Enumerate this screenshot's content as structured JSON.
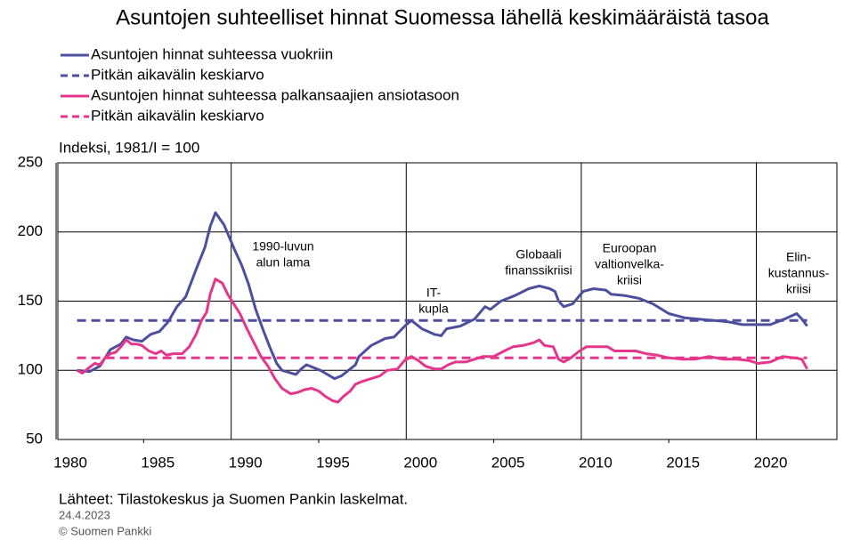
{
  "chart_data": {
    "type": "line",
    "title": "Asuntojen suhteelliset hinnat Suomessa lähellä keskimääräistä tasoa",
    "y_axis_label": "Indeksi, 1981/I = 100",
    "source": "Lähteet: Tilastokeskus ja Suomen Pankin laskelmat.",
    "date": "24.4.2023",
    "copyright": "© Suomen Pankki",
    "xlim": [
      1980.1,
      2024.6
    ],
    "xticks": [
      1980,
      1985,
      1990,
      1995,
      2000,
      2005,
      2010,
      2015,
      2020
    ],
    "ylim": [
      50,
      250
    ],
    "yticks": [
      50,
      100,
      150,
      200,
      250
    ],
    "grid": true,
    "legend": "top-left",
    "annotations": [
      {
        "lines": [
          "1990-luvun",
          "alun lama"
        ]
      },
      {
        "lines": [
          "IT-",
          "kupla"
        ]
      },
      {
        "lines": [
          "Globaali",
          "finanssikriisi"
        ]
      },
      {
        "lines": [
          "Euroopan",
          "valtionvelka-",
          "kriisi"
        ]
      },
      {
        "lines": [
          "Elin-",
          "kustannus-",
          "kriisi"
        ]
      }
    ],
    "series": [
      {
        "name": "Asuntojen hinnat suhteessa vuokriin",
        "color": "#4b4f9e",
        "dashed": false,
        "x": [
          1981.2,
          1981.9,
          1982.5,
          1983.1,
          1983.7,
          1984.0,
          1984.4,
          1984.9,
          1985.4,
          1985.9,
          1986.4,
          1986.9,
          1987.4,
          1987.7,
          1988.0,
          1988.5,
          1988.8,
          1989.1,
          1989.6,
          1990.2,
          1990.6,
          1991.0,
          1991.4,
          1991.8,
          1992.2,
          1992.6,
          1992.9,
          1993.7,
          1994.0,
          1994.3,
          1995.1,
          1995.9,
          1996.3,
          1996.7,
          1997.1,
          1997.3,
          1998.0,
          1998.8,
          1999.3,
          2000.0,
          2000.3,
          2000.9,
          2001.6,
          2002.0,
          2002.3,
          2003.1,
          2003.9,
          2004.5,
          2004.8,
          2005.4,
          2006.2,
          2007.0,
          2007.6,
          2008.2,
          2008.5,
          2008.7,
          2009.0,
          2009.5,
          2010.1,
          2010.7,
          2011.4,
          2011.7,
          2012.5,
          2013.3,
          2014.1,
          2015.0,
          2015.9,
          2016.7,
          2017.6,
          2018.4,
          2019.2,
          2020.0,
          2020.8,
          2021.6,
          2022.3,
          2022.6,
          2022.9
        ],
        "values": [
          100,
          99,
          103,
          115,
          119,
          124,
          122,
          121,
          126,
          128,
          135,
          146,
          153,
          163,
          173,
          189,
          204,
          214,
          205,
          187,
          176,
          162,
          144,
          130,
          117,
          105,
          100,
          97,
          101,
          104,
          100,
          94,
          96,
          100,
          104,
          110,
          118,
          123,
          124,
          133,
          136,
          130,
          126,
          125,
          130,
          132,
          137,
          146,
          144,
          150,
          154,
          159,
          161,
          159,
          157,
          150,
          146,
          148,
          157,
          159,
          158,
          155,
          154,
          152,
          148,
          141,
          138,
          137,
          136,
          135,
          133,
          133,
          133,
          137,
          141,
          137,
          132
        ]
      },
      {
        "name": "Pitkän aikavälin keskiarvo",
        "color": "#4b4f9e",
        "dashed": true,
        "x": [
          1981.2,
          2022.9
        ],
        "values": [
          136,
          136
        ]
      },
      {
        "name": "Asuntojen hinnat suhteessa palkansaajien ansiotasoon",
        "color": "#e4368b",
        "dashed": false,
        "x": [
          1981.2,
          1981.5,
          1981.9,
          1982.2,
          1982.5,
          1982.8,
          1983.1,
          1983.4,
          1983.7,
          1984.0,
          1984.3,
          1984.6,
          1984.9,
          1985.3,
          1985.7,
          1986.0,
          1986.3,
          1986.7,
          1987.2,
          1987.6,
          1988.0,
          1988.3,
          1988.6,
          1988.8,
          1989.1,
          1989.5,
          1989.8,
          1990.1,
          1990.5,
          1990.9,
          1991.3,
          1991.7,
          1992.1,
          1992.5,
          1992.9,
          1993.4,
          1993.8,
          1994.2,
          1994.6,
          1995.0,
          1995.4,
          1995.8,
          1996.1,
          1996.4,
          1996.8,
          1997.1,
          1997.5,
          1998.0,
          1998.5,
          1998.9,
          1999.5,
          1999.9,
          2000.3,
          2000.7,
          2001.1,
          2001.6,
          2002.0,
          2002.4,
          2002.8,
          2003.4,
          2003.9,
          2004.4,
          2005.0,
          2005.6,
          2006.1,
          2006.7,
          2007.3,
          2007.6,
          2007.9,
          2008.4,
          2008.7,
          2009.0,
          2009.4,
          2009.9,
          2010.3,
          2010.8,
          2011.5,
          2011.9,
          2012.5,
          2013.1,
          2013.7,
          2014.3,
          2015.0,
          2015.8,
          2016.5,
          2017.3,
          2018.1,
          2018.9,
          2019.6,
          2020.1,
          2020.8,
          2021.5,
          2022.2,
          2022.6,
          2022.9
        ],
        "values": [
          100,
          98,
          102,
          105,
          104,
          109,
          112,
          113,
          117,
          122,
          119,
          119,
          118,
          114,
          112,
          114,
          111,
          112,
          112,
          117,
          126,
          136,
          142,
          155,
          166,
          163,
          155,
          149,
          141,
          130,
          120,
          110,
          103,
          94,
          87,
          83,
          84,
          86,
          87,
          85,
          81,
          78,
          77,
          81,
          85,
          90,
          92,
          94,
          96,
          100,
          101,
          107,
          110,
          107,
          103,
          101,
          101,
          104,
          106,
          106,
          108,
          110,
          110,
          114,
          117,
          118,
          120,
          122,
          118,
          117,
          108,
          106,
          109,
          114,
          117,
          117,
          117,
          114,
          114,
          114,
          112,
          111,
          109,
          108,
          108,
          110,
          108,
          108,
          107,
          105,
          106,
          110,
          109,
          108,
          101
        ]
      },
      {
        "name": "Pitkän aikavälin keskiarvo",
        "color": "#e4368b",
        "dashed": true,
        "x": [
          1981.2,
          2022.9
        ],
        "values": [
          109,
          109
        ]
      }
    ]
  }
}
